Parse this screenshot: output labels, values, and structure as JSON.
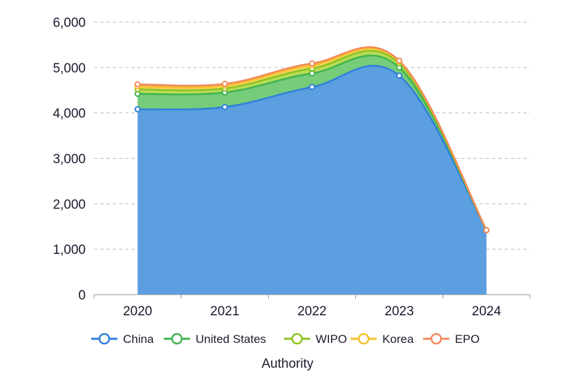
{
  "chart_data": {
    "type": "area",
    "stacked": true,
    "categories": [
      "2020",
      "2021",
      "2022",
      "2023",
      "2024"
    ],
    "series": [
      {
        "name": "China",
        "values": [
          4080,
          4130,
          4570,
          4820,
          1420
        ],
        "color": "#2f7fdb",
        "fill": "#5b9fe0"
      },
      {
        "name": "United States",
        "values": [
          340,
          320,
          300,
          180,
          0
        ],
        "color": "#3fb34f",
        "fill": "#77cc7a"
      },
      {
        "name": "WIPO",
        "values": [
          100,
          90,
          110,
          90,
          0
        ],
        "color": "#8dc21f",
        "fill": "#b6dc55"
      },
      {
        "name": "Korea",
        "values": [
          60,
          60,
          70,
          40,
          0
        ],
        "color": "#f6c02b",
        "fill": "#f8d565"
      },
      {
        "name": "EPO",
        "values": [
          50,
          40,
          40,
          20,
          0
        ],
        "color": "#f08a5a",
        "fill": "#f3a37f"
      }
    ],
    "y_ticks": [
      "0",
      "1,000",
      "2,000",
      "3,000",
      "4,000",
      "5,000",
      "6,000"
    ],
    "ylim": [
      0,
      6000
    ],
    "xlabel": "Authority",
    "ylabel": "",
    "grid": true,
    "legend_position": "bottom"
  }
}
